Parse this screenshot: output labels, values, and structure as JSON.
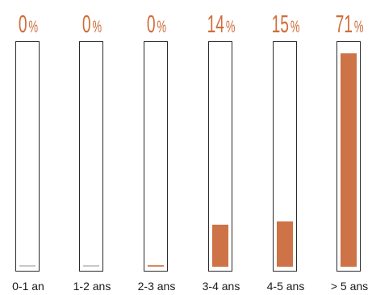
{
  "chart_data": {
    "type": "bar",
    "categories": [
      "0-1 an",
      "1-2 ans",
      "2-3 ans",
      "3-4 ans",
      "4-5 ans",
      "> 5 ans"
    ],
    "values": [
      0,
      0,
      0,
      14,
      15,
      71
    ],
    "value_labels": [
      "0",
      "0",
      "0",
      "14",
      "15",
      "71"
    ],
    "unit": "%",
    "ylim": [
      0,
      74
    ],
    "grid": false,
    "bar_color": "#cd7347",
    "label_color": "#d06d3a"
  }
}
